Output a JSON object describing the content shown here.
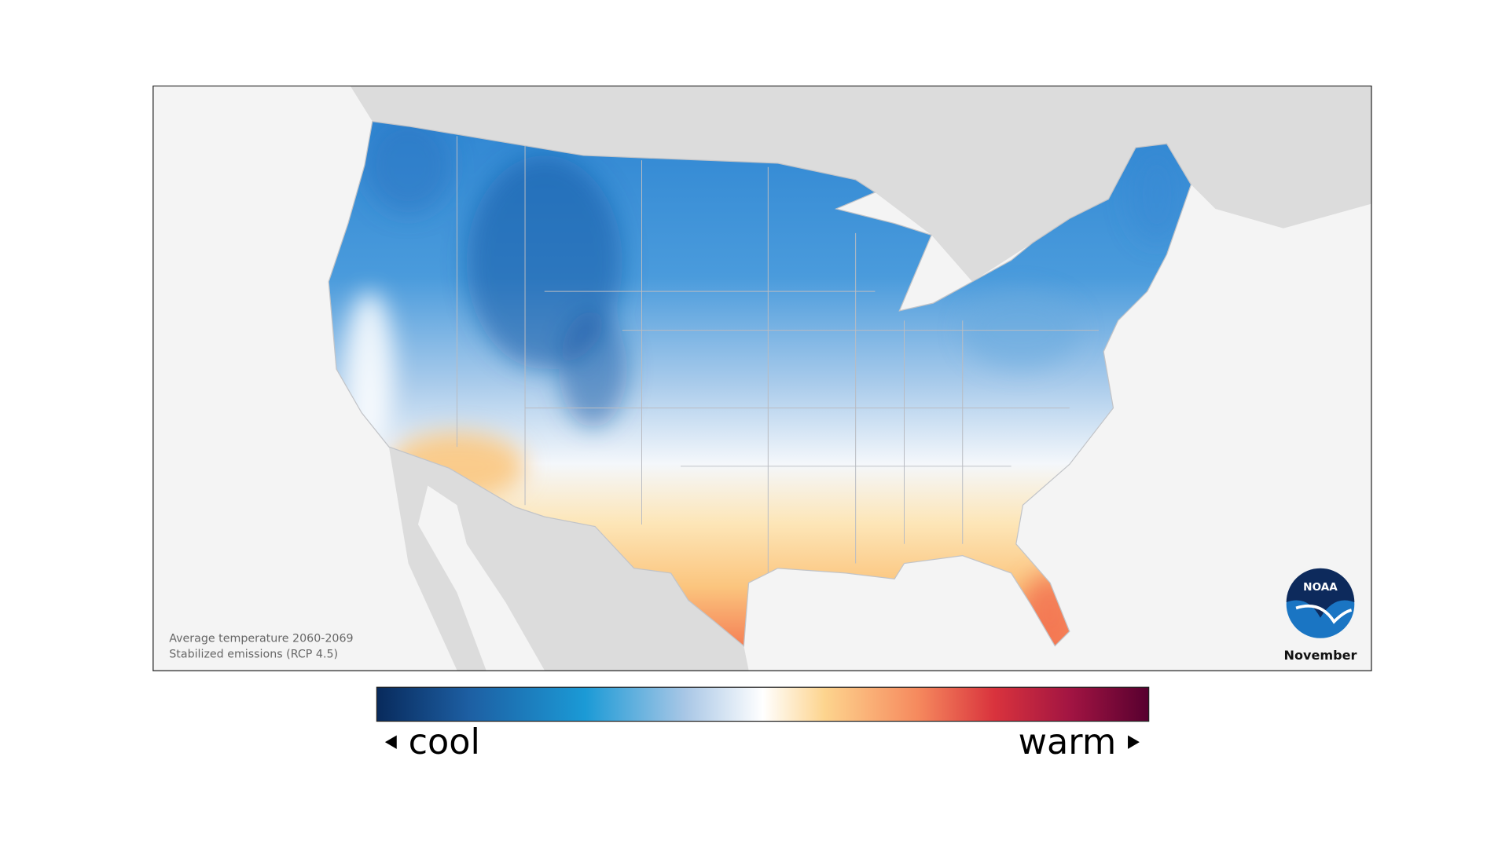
{
  "map": {
    "caption": {
      "title": "Average temperature 2060-2069",
      "subtitle": "Stabilized emissions (RCP 4.5)"
    },
    "month": "November",
    "logo": "NOAA",
    "legend": {
      "low": "cool",
      "high": "warm"
    }
  }
}
